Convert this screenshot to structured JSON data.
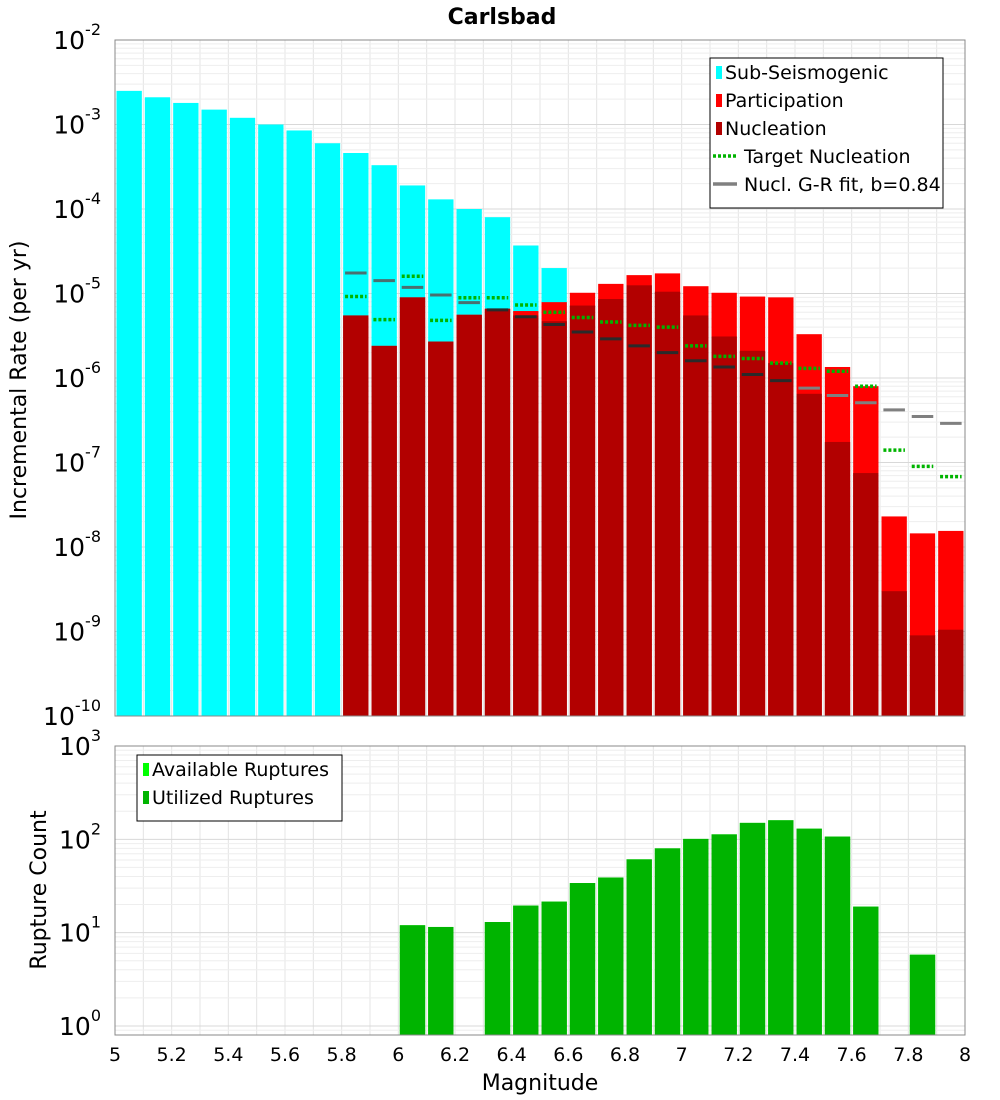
{
  "chart_data": [
    {
      "type": "bar",
      "title": "Carlsbad",
      "ylabel": "Incremental Rate (per yr)",
      "xlabel": "",
      "xlim": [
        5,
        8
      ],
      "ylim": [
        1e-10,
        0.01
      ],
      "yscale": "log",
      "grid": true,
      "legend_position": "top-right",
      "x": [
        5.05,
        5.15,
        5.25,
        5.35,
        5.45,
        5.55,
        5.65,
        5.75,
        5.85,
        5.95,
        6.05,
        6.15,
        6.25,
        6.35,
        6.45,
        6.55,
        6.65,
        6.75,
        6.85,
        6.95,
        7.05,
        7.15,
        7.25,
        7.35,
        7.45,
        7.55,
        7.65,
        7.75,
        7.85,
        7.95
      ],
      "y_tick_labels": [
        {
          "base": "10",
          "exp": "-10"
        },
        {
          "base": "10",
          "exp": "-9"
        },
        {
          "base": "10",
          "exp": "-8"
        },
        {
          "base": "10",
          "exp": "-7"
        },
        {
          "base": "10",
          "exp": "-6"
        },
        {
          "base": "10",
          "exp": "-5"
        },
        {
          "base": "10",
          "exp": "-4"
        },
        {
          "base": "10",
          "exp": "-3"
        },
        {
          "base": "10",
          "exp": "-2"
        }
      ],
      "series": [
        {
          "name": "Sub-Seismogenic",
          "kind": "bar",
          "color": "#00FFFF",
          "values": [
            0.0025,
            0.0021,
            0.0018,
            0.0015,
            0.0012,
            0.001,
            0.00085,
            0.0006,
            0.00046,
            0.00033,
            0.00019,
            0.00013,
            0.0001,
            8e-05,
            3.7e-05,
            2e-05,
            null,
            null,
            null,
            null,
            null,
            null,
            null,
            null,
            null,
            null,
            null,
            null,
            null,
            null
          ]
        },
        {
          "name": "Participation",
          "kind": "bar",
          "color": "#FF0000",
          "values": [
            null,
            null,
            null,
            null,
            null,
            null,
            null,
            null,
            5.5e-06,
            2.4e-06,
            9e-06,
            2.7e-06,
            5.6e-06,
            6.6e-06,
            6.2e-06,
            7.9e-06,
            1.02e-05,
            1.3e-05,
            1.65e-05,
            1.73e-05,
            1.22e-05,
            1.02e-05,
            9.2e-06,
            9e-06,
            3.3e-06,
            1.35e-06,
            8e-07,
            2.3e-08,
            1.45e-08,
            1.55e-08
          ]
        },
        {
          "name": "Nucleation",
          "kind": "bar",
          "color": "#B20000",
          "values": [
            null,
            null,
            null,
            null,
            null,
            null,
            null,
            null,
            5.5e-06,
            2.4e-06,
            9e-06,
            2.7e-06,
            5.6e-06,
            6.6e-06,
            5.5e-06,
            4.7e-06,
            7.2e-06,
            8.6e-06,
            1.25e-05,
            1.05e-05,
            5.5e-06,
            3.1e-06,
            2.1e-06,
            1.5e-06,
            6.5e-07,
            1.75e-07,
            7.5e-08,
            3e-09,
            9e-10,
            1.05e-09
          ]
        },
        {
          "name": "Target Nucleation",
          "kind": "dotted-step",
          "color": "#00B400",
          "values": [
            null,
            null,
            null,
            null,
            null,
            null,
            null,
            null,
            9.2e-06,
            4.9e-06,
            1.6e-05,
            4.8e-06,
            8.9e-06,
            8.9e-06,
            7.3e-06,
            6e-06,
            5.2e-06,
            4.6e-06,
            4.2e-06,
            4e-06,
            2.4e-06,
            1.8e-06,
            1.7e-06,
            1.5e-06,
            1.3e-06,
            1.2e-06,
            8e-07,
            1.4e-07,
            9e-08,
            6.8e-08
          ]
        },
        {
          "name": "Nucl. G-R fit, b=0.84",
          "kind": "step",
          "color": "#808080",
          "values": [
            null,
            null,
            null,
            null,
            null,
            null,
            null,
            null,
            1.75e-05,
            1.42e-05,
            1.18e-05,
            9.6e-06,
            7.8e-06,
            6.4e-06,
            5.3e-06,
            4.3e-06,
            3.5e-06,
            2.9e-06,
            2.4e-06,
            2e-06,
            1.6e-06,
            1.35e-06,
            1.1e-06,
            9.3e-07,
            7.6e-07,
            6.2e-07,
            5.1e-07,
            4.2e-07,
            3.5e-07,
            2.9e-07
          ]
        }
      ]
    },
    {
      "type": "bar",
      "title": "",
      "ylabel": "Rupture Count",
      "xlabel": "Magnitude",
      "xlim": [
        5,
        8
      ],
      "ylim": [
        0.8,
        1000
      ],
      "yscale": "log",
      "grid": true,
      "legend_position": "top-left",
      "x_ticks": [
        5,
        5.2,
        5.4,
        5.6,
        5.8,
        6,
        6.2,
        6.4,
        6.6,
        6.8,
        7,
        7.2,
        7.4,
        7.6,
        7.8,
        8
      ],
      "x_tick_labels": [
        "5",
        "5.2",
        "5.4",
        "5.6",
        "5.8",
        "6",
        "6.2",
        "6.4",
        "6.6",
        "6.8",
        "7",
        "7.2",
        "7.4",
        "7.6",
        "7.8",
        "8"
      ],
      "x": [
        5.05,
        5.15,
        5.25,
        5.35,
        5.45,
        5.55,
        5.65,
        5.75,
        5.85,
        5.95,
        6.05,
        6.15,
        6.25,
        6.35,
        6.45,
        6.55,
        6.65,
        6.75,
        6.85,
        6.95,
        7.05,
        7.15,
        7.25,
        7.35,
        7.45,
        7.55,
        7.65,
        7.75,
        7.85,
        7.95
      ],
      "y_tick_labels": [
        {
          "base": "10",
          "exp": "0"
        },
        {
          "base": "10",
          "exp": "1"
        },
        {
          "base": "10",
          "exp": "2"
        },
        {
          "base": "10",
          "exp": "3"
        }
      ],
      "series": [
        {
          "name": "Available Ruptures",
          "kind": "bar",
          "color": "#00FF00",
          "values": [
            null,
            null,
            null,
            null,
            null,
            null,
            null,
            null,
            null,
            null,
            12,
            11.5,
            null,
            13,
            19.5,
            21.5,
            34,
            39,
            61,
            80,
            101,
            113,
            150,
            160,
            130,
            107,
            19,
            null,
            5.8,
            null
          ]
        },
        {
          "name": "Utilized Ruptures",
          "kind": "bar",
          "color": "#00B400",
          "values": [
            null,
            null,
            null,
            null,
            null,
            null,
            null,
            null,
            null,
            null,
            12,
            11.5,
            null,
            13,
            19.5,
            21.5,
            34,
            39,
            61,
            80,
            101,
            113,
            150,
            160,
            130,
            107,
            19,
            null,
            5.8,
            null
          ]
        }
      ]
    }
  ]
}
